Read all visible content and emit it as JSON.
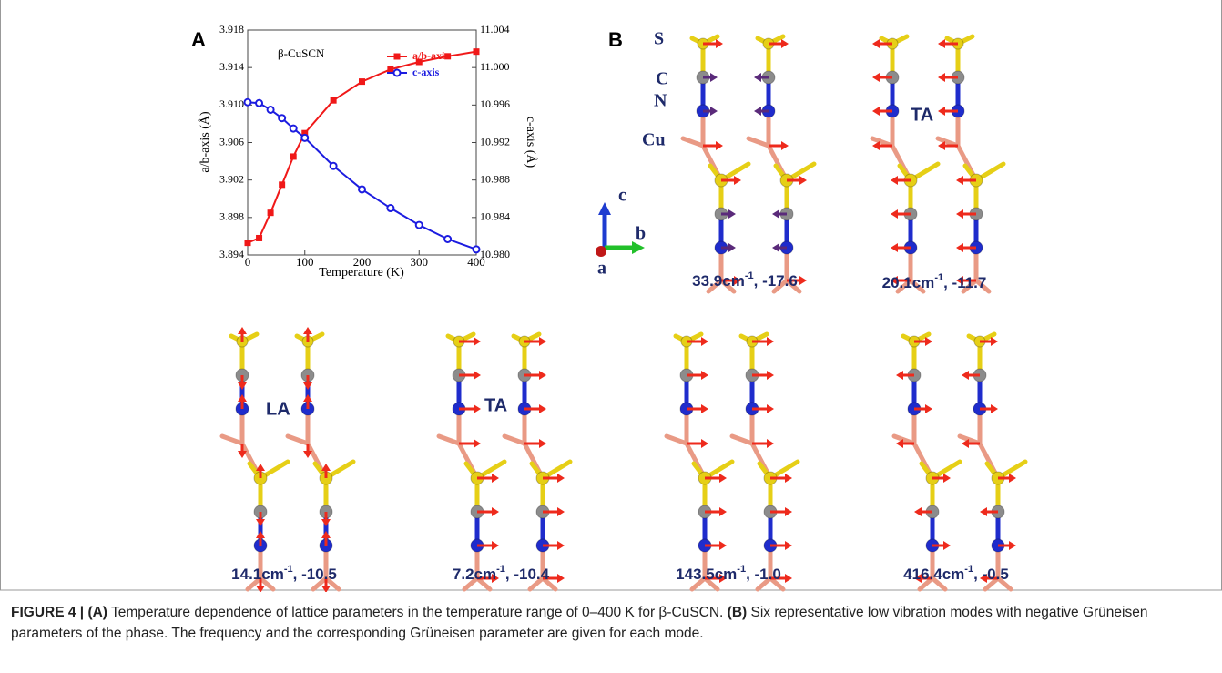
{
  "chart_data": {
    "type": "line",
    "panel_label": "A",
    "annotation": "β-CuSCN",
    "x_label": "Temperature (K)",
    "y_label": "a/b-axis (Å)",
    "y2_label": "c-axis (Å)",
    "x": [
      0,
      20,
      40,
      60,
      80,
      100,
      150,
      200,
      250,
      300,
      350,
      400
    ],
    "series": [
      {
        "name": "a/b-axis",
        "color": "#f01818",
        "marker": "square",
        "values": [
          3.8953,
          3.8958,
          3.8985,
          3.9015,
          3.9045,
          3.907,
          3.9105,
          3.9125,
          3.9138,
          3.9146,
          3.9152,
          3.9157
        ]
      },
      {
        "name": "c-axis",
        "color": "#1c1ce0",
        "marker": "circle",
        "axis": "y2",
        "values": [
          10.9963,
          10.9962,
          10.9955,
          10.9946,
          10.9935,
          10.9925,
          10.9895,
          10.987,
          10.985,
          10.9832,
          10.9817,
          10.9806
        ]
      }
    ],
    "xlim": [
      0,
      400
    ],
    "xticks": [
      0,
      100,
      200,
      300,
      400
    ],
    "ylim": [
      3.894,
      3.918
    ],
    "yticks": [
      3.894,
      3.898,
      3.902,
      3.906,
      {
        "value": 3.91,
        "label": "3.910"
      },
      3.914,
      3.918
    ],
    "y2lim": [
      10.98,
      11.004
    ],
    "y2ticks": [
      {
        "value": 10.98,
        "label": "10.980"
      },
      10.984,
      10.988,
      10.992,
      10.996,
      {
        "value": 11,
        "label": "11.000"
      },
      11.004
    ],
    "legend": "upper right",
    "grid": false
  },
  "panel_b": {
    "label": "B",
    "atoms": [
      "S",
      "C",
      "N",
      "Cu"
    ],
    "axes": [
      "c",
      "b",
      "a"
    ],
    "modes": [
      {
        "frequency": "33.9cm",
        "exponent": "-1",
        "gruneisen": ", -17.6"
      },
      {
        "frequency": "20.1cm",
        "exponent": "-1",
        "gruneisen": ", -11.7",
        "annotation": "TA"
      },
      {
        "frequency": "14.1cm",
        "exponent": "-1",
        "gruneisen": ", -10.5",
        "annotation": "LA"
      },
      {
        "frequency": "7.2cm",
        "exponent": "-1",
        "gruneisen": ", -10.4",
        "annotation": "TA"
      },
      {
        "frequency": "143.5cm",
        "exponent": "-1",
        "gruneisen": ", -1.0"
      },
      {
        "frequency": "416.4cm",
        "exponent": "-1",
        "gruneisen": ", -0.5"
      }
    ]
  },
  "caption": {
    "figure_label": "FIGURE 4 |",
    "a_label": "(A)",
    "a_text": "Temperature dependence of lattice parameters in the temperature range of 0–400 K for β-CuSCN.",
    "b_label": "(B)",
    "b_text": "Six representative low vibration modes with negative Grüneisen parameters of the phase. The frequency and the corresponding Grüneisen parameter are given for each mode."
  }
}
